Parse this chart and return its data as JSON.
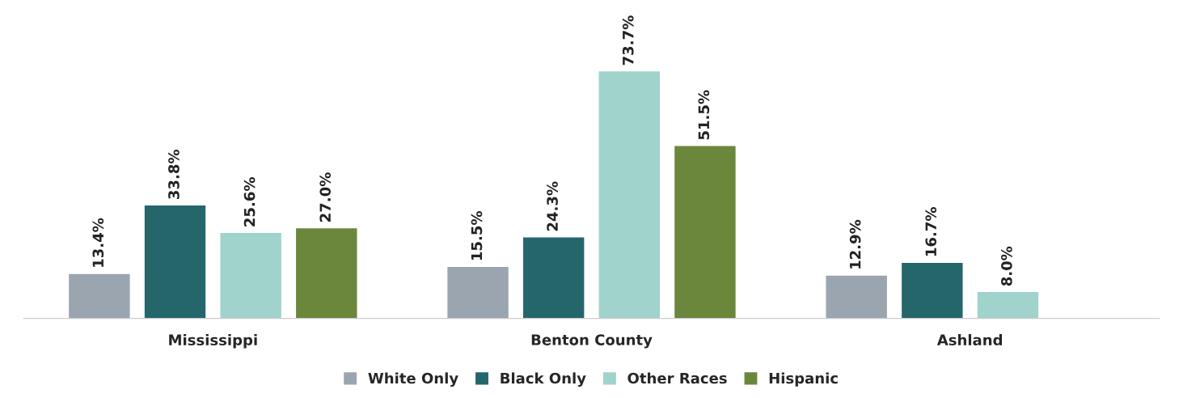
{
  "chart_data": {
    "type": "bar",
    "categories": [
      "Mississippi",
      "Benton County",
      "Ashland"
    ],
    "series": [
      {
        "name": "White Only",
        "color": "#9aa5b0",
        "values": [
          13.4,
          15.5,
          12.9
        ],
        "value_labels": [
          "13.4%",
          "15.5%",
          "12.9%"
        ]
      },
      {
        "name": "Black Only",
        "color": "#25666b",
        "values": [
          33.8,
          24.3,
          16.7
        ],
        "value_labels": [
          "33.8%",
          "24.3%",
          "16.7%"
        ]
      },
      {
        "name": "Other Races",
        "color": "#9fd3cb",
        "values": [
          25.6,
          73.7,
          8.0
        ],
        "value_labels": [
          "25.6%",
          "73.7%",
          "8.0%"
        ]
      },
      {
        "name": "Hispanic",
        "color": "#6a873b",
        "values": [
          27.0,
          51.5,
          null
        ],
        "value_labels": [
          "27.0%",
          "51.5%",
          null
        ]
      }
    ],
    "legend": "bottom",
    "grid": false
  }
}
